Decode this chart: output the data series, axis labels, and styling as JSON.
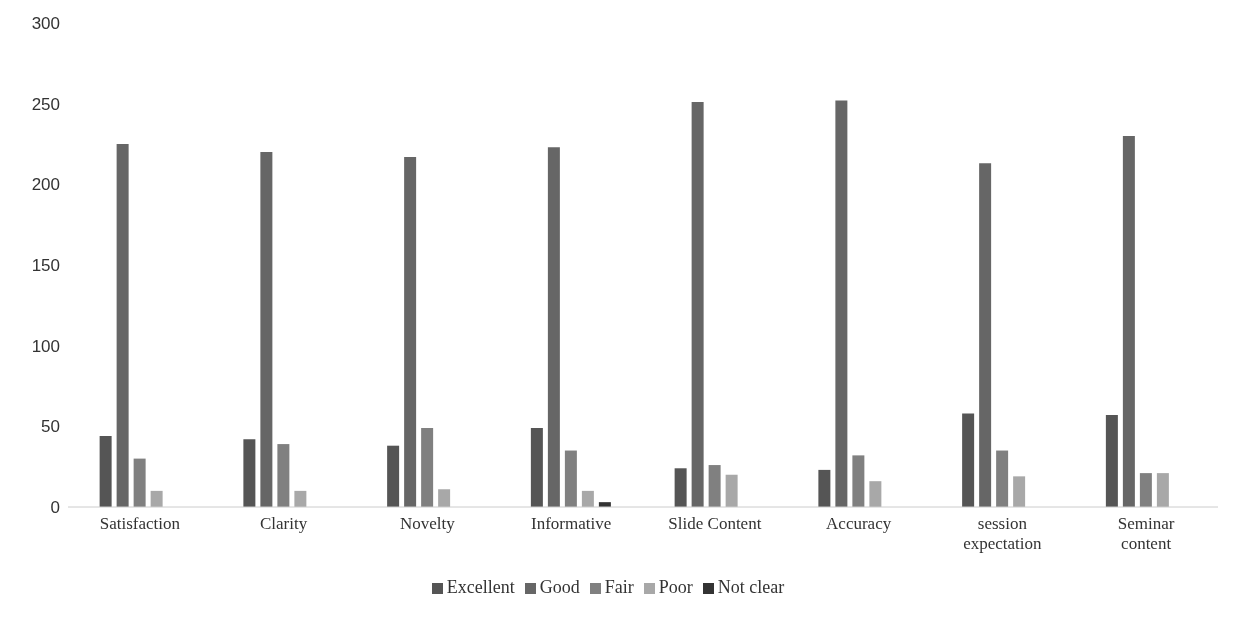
{
  "chart_data": {
    "type": "bar",
    "categories": [
      "Satisfaction",
      "Clarity",
      "Novelty",
      "Informative",
      "Slide Content",
      "Accuracy",
      "session expectation",
      "Seminar content"
    ],
    "series": [
      {
        "name": "Excellent",
        "color": "#555555",
        "values": [
          44,
          42,
          38,
          49,
          24,
          23,
          58,
          57
        ]
      },
      {
        "name": "Good",
        "color": "#666666",
        "values": [
          225,
          220,
          217,
          223,
          251,
          252,
          213,
          230
        ]
      },
      {
        "name": "Fair",
        "color": "#808080",
        "values": [
          30,
          39,
          49,
          35,
          26,
          32,
          35,
          21
        ]
      },
      {
        "name": "Poor",
        "color": "#a8a8a8",
        "values": [
          10,
          10,
          11,
          10,
          20,
          16,
          19,
          21
        ]
      },
      {
        "name": "Not clear",
        "color": "#333333",
        "values": [
          0,
          0,
          0,
          3,
          0,
          0,
          0,
          0
        ]
      }
    ],
    "ylim": [
      0,
      300
    ],
    "yticks": [
      0,
      50,
      100,
      150,
      200,
      250,
      300
    ],
    "grid": false,
    "legend": "bottom"
  }
}
